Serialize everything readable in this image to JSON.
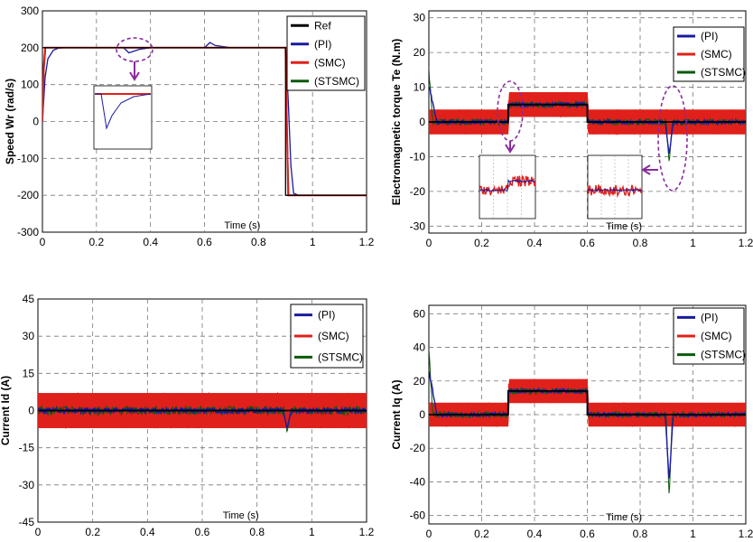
{
  "colors": {
    "ref": "#000000",
    "pi": "#1a1aa0",
    "smc": "#e0201a",
    "stsmc": "#0a5a0a",
    "highlight": "#8a2b9e"
  },
  "chart_data": [
    {
      "type": "line",
      "ylabel": "Speed Wr (rad/s)",
      "xlabel": "Time (s)",
      "xlim": [
        0,
        1.2
      ],
      "ylim": [
        -300,
        300
      ],
      "xticks": [
        "0",
        "0.2",
        "0.4",
        "0.6",
        "0.8",
        "1",
        "1.2"
      ],
      "yticks": [
        "300",
        "200",
        "100",
        "0",
        "-100",
        "-200",
        "-300"
      ],
      "grid": true,
      "legend_position": "top-right",
      "legend": [
        "Ref",
        "(PI)",
        "(SMC)",
        "(STSMC)"
      ],
      "series": [
        {
          "name": "Ref",
          "x": [
            0,
            0.9,
            0.9,
            1.2
          ],
          "y": [
            200,
            200,
            -200,
            -200
          ]
        },
        {
          "name": "(PI)",
          "x": [
            0,
            0.01,
            0.02,
            0.04,
            0.06,
            0.08,
            0.3,
            0.32,
            0.36,
            0.4,
            0.6,
            0.62,
            0.64,
            0.7,
            0.9,
            0.91,
            0.92,
            0.93,
            0.95,
            1.2
          ],
          "y": [
            0,
            120,
            170,
            193,
            199,
            200,
            200,
            186,
            196,
            200,
            200,
            214,
            206,
            200,
            200,
            60,
            -120,
            -195,
            -200,
            -200
          ]
        },
        {
          "name": "(SMC)",
          "x": [
            0,
            0.005,
            0.01,
            0.9,
            0.905,
            0.91,
            1.2
          ],
          "y": [
            0,
            150,
            200,
            200,
            0,
            -200,
            -200
          ]
        },
        {
          "name": "(STSMC)",
          "x": [
            0,
            0.006,
            0.012,
            0.9,
            0.906,
            0.912,
            1.2
          ],
          "y": [
            0,
            140,
            200,
            200,
            -20,
            -200,
            -200
          ]
        }
      ]
    },
    {
      "type": "line",
      "ylabel": "Electromagnetic torque Te (N.m)",
      "xlabel": "Time (s)",
      "xlim": [
        0,
        1.2
      ],
      "ylim": [
        -32,
        32
      ],
      "xticks": [
        "0",
        "0.2",
        "0.4",
        "0.6",
        "0.8",
        "1",
        "1.2"
      ],
      "yticks": [
        "30",
        "20",
        "10",
        "0",
        "-10",
        "-20",
        "-30"
      ],
      "grid": true,
      "legend_position": "top-right",
      "legend": [
        "(PI)",
        "(SMC)",
        "(STSMC)"
      ],
      "segments": [
        {
          "x": [
            0,
            0.3
          ],
          "y": 0
        },
        {
          "x": [
            0.3,
            0.6
          ],
          "y": 5
        },
        {
          "x": [
            0.6,
            1.2
          ],
          "y": 0
        }
      ],
      "smc_ripple": 3.5,
      "startup_peak": 15,
      "reversal_dip": {
        "t": 0.91,
        "y": -12
      }
    },
    {
      "type": "line",
      "ylabel": "Current Id (A)",
      "xlabel": "Time (s)",
      "xlim": [
        0,
        1.2
      ],
      "ylim": [
        -45,
        45
      ],
      "xticks": [
        "0",
        "0.2",
        "0.4",
        "0.6",
        "0.8",
        "1",
        "1.2"
      ],
      "yticks": [
        "45",
        "30",
        "15",
        "0",
        "-15",
        "-30",
        "-45"
      ],
      "grid": true,
      "legend_position": "top-right",
      "legend": [
        "(PI)",
        "(SMC)",
        "(STSMC)"
      ],
      "segments": [
        {
          "x": [
            0,
            1.2
          ],
          "y": 0
        }
      ],
      "smc_ripple": 7,
      "startup_peak": 0,
      "reversal_dip": {
        "t": 0.91,
        "y": -9
      }
    },
    {
      "type": "line",
      "ylabel": "Current Iq (A)",
      "xlabel": "Time (s)",
      "xlim": [
        0,
        1.2
      ],
      "ylim": [
        -65,
        65
      ],
      "xticks": [
        "0",
        "0.2",
        "0.4",
        "0.6",
        "0.8",
        "1",
        "1.2"
      ],
      "yticks": [
        "60",
        "40",
        "20",
        "0",
        "-20",
        "-40",
        "-60"
      ],
      "grid": true,
      "legend_position": "top-right",
      "legend": [
        "(PI)",
        "(SMC)",
        "(STSMC)"
      ],
      "segments": [
        {
          "x": [
            0,
            0.3
          ],
          "y": 0
        },
        {
          "x": [
            0.3,
            0.6
          ],
          "y": 14
        },
        {
          "x": [
            0.6,
            1.2
          ],
          "y": 0
        }
      ],
      "smc_ripple": 7,
      "startup_peak": 38,
      "reversal_dip": {
        "t": 0.91,
        "y": -50
      }
    }
  ]
}
